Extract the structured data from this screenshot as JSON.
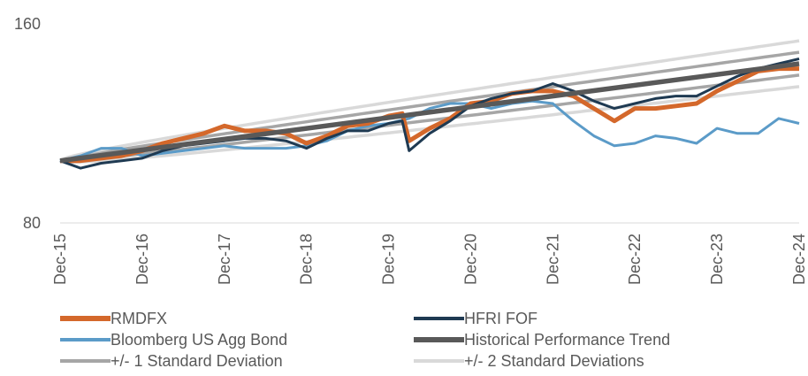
{
  "chart_data": {
    "type": "line",
    "ylim": [
      80,
      160
    ],
    "y_ticks": [
      "160",
      "80"
    ],
    "x_start": "Dec-15",
    "x_end": "Dec-24",
    "x_tick_labels": [
      "Dec-15",
      "Dec-16",
      "Dec-17",
      "Dec-18",
      "Dec-19",
      "Dec-20",
      "Dec-21",
      "Dec-22",
      "Dec-23",
      "Dec-24"
    ],
    "grid": false,
    "legend_position": "bottom",
    "series": [
      {
        "name": "RMDFX",
        "color": "#D4682B",
        "x": [
          "Dec-15",
          "Mar-16",
          "Jun-16",
          "Sep-16",
          "Dec-16",
          "Mar-17",
          "Jun-17",
          "Sep-17",
          "Dec-17",
          "Mar-18",
          "Jun-18",
          "Sep-18",
          "Dec-18",
          "Mar-19",
          "Jun-19",
          "Sep-19",
          "Dec-19",
          "Feb-20",
          "Mar-20",
          "Jun-20",
          "Sep-20",
          "Dec-20",
          "Mar-21",
          "Jun-21",
          "Sep-21",
          "Dec-21",
          "Mar-22",
          "Jun-22",
          "Sep-22",
          "Dec-22",
          "Mar-23",
          "Jun-23",
          "Sep-23",
          "Dec-23",
          "Mar-24",
          "Jun-24",
          "Sep-24",
          "Dec-24"
        ],
        "values": [
          105,
          105,
          106,
          107,
          109,
          112,
          114,
          116,
          119,
          117,
          117,
          116,
          112,
          115,
          119,
          120,
          123,
          124,
          113,
          118,
          122,
          128,
          129,
          132,
          133,
          133,
          131,
          126,
          121,
          126,
          126,
          127,
          128,
          133,
          137,
          141,
          142,
          142
        ]
      },
      {
        "name": "HFRI FOF",
        "color": "#1F3A52",
        "x": [
          "Dec-15",
          "Mar-16",
          "Jun-16",
          "Sep-16",
          "Dec-16",
          "Mar-17",
          "Jun-17",
          "Sep-17",
          "Dec-17",
          "Mar-18",
          "Jun-18",
          "Sep-18",
          "Dec-18",
          "Mar-19",
          "Jun-19",
          "Sep-19",
          "Dec-19",
          "Feb-20",
          "Mar-20",
          "Jun-20",
          "Sep-20",
          "Dec-20",
          "Mar-21",
          "Jun-21",
          "Sep-21",
          "Dec-21",
          "Mar-22",
          "Jun-22",
          "Sep-22",
          "Dec-22",
          "Mar-23",
          "Jun-23",
          "Sep-23",
          "Dec-23",
          "Mar-24",
          "Jun-24",
          "Sep-24",
          "Dec-24"
        ],
        "values": [
          105,
          102,
          104,
          105,
          106,
          109,
          111,
          112,
          113,
          114,
          114,
          113,
          110,
          114,
          117,
          117,
          120,
          121,
          109,
          116,
          121,
          127,
          130,
          132,
          133,
          136,
          133,
          129,
          126,
          128,
          130,
          131,
          131,
          135,
          139,
          142,
          144,
          146
        ]
      },
      {
        "name": "Bloomberg US Agg Bond",
        "color": "#5B9BC8",
        "x": [
          "Dec-15",
          "Mar-16",
          "Jun-16",
          "Sep-16",
          "Dec-16",
          "Mar-17",
          "Jun-17",
          "Sep-17",
          "Dec-17",
          "Mar-18",
          "Jun-18",
          "Sep-18",
          "Dec-18",
          "Mar-19",
          "Jun-19",
          "Sep-19",
          "Dec-19",
          "Mar-20",
          "Jun-20",
          "Sep-20",
          "Dec-20",
          "Mar-21",
          "Jun-21",
          "Sep-21",
          "Dec-21",
          "Mar-22",
          "Jun-22",
          "Sep-22",
          "Dec-22",
          "Mar-23",
          "Jun-23",
          "Sep-23",
          "Dec-23",
          "Mar-24",
          "Jun-24",
          "Sep-24",
          "Dec-24"
        ],
        "values": [
          105,
          107,
          110,
          110,
          107,
          108,
          109,
          110,
          111,
          110,
          110,
          110,
          111,
          113,
          117,
          119,
          120,
          122,
          126,
          128,
          128,
          126,
          128,
          129,
          128,
          121,
          115,
          111,
          112,
          115,
          114,
          112,
          118,
          116,
          116,
          122,
          120
        ]
      },
      {
        "name": "Historical Performance Trend",
        "color": "#595959",
        "x": [
          "Dec-15",
          "Dec-24"
        ],
        "values": [
          105,
          144
        ]
      }
    ],
    "bands": [
      {
        "name": "+/- 1 Standard Deviation",
        "color": "#A6A6A6",
        "sigma": 1
      },
      {
        "name": "+/- 2 Standard Deviations",
        "color": "#D9D9D9",
        "sigma": 2
      }
    ]
  }
}
